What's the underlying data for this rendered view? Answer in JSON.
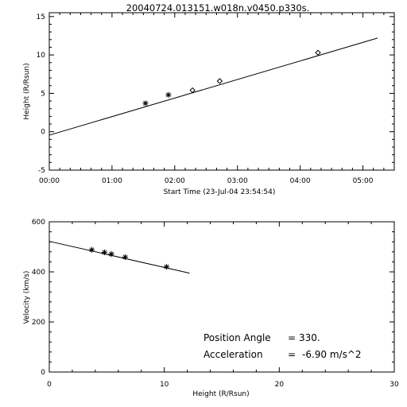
{
  "chart_data": [
    {
      "type": "line",
      "title": "20040724.013151.w018n.v0450.p330s.",
      "xlabel": "Start Time (23-Jul-04 23:54:54)",
      "ylabel": "Height (R/Rsun)",
      "x_tick_labels": [
        "00:00",
        "01:00",
        "02:00",
        "03:00",
        "04:00",
        "05:00"
      ],
      "x_tick_minutes": [
        0,
        60,
        120,
        180,
        240,
        300
      ],
      "xlim_minutes": [
        0,
        330
      ],
      "y_ticks": [
        -5,
        0,
        5,
        10,
        15
      ],
      "ylim": [
        -5,
        15.5
      ],
      "grid": false,
      "series": [
        {
          "style": "line",
          "x_minutes": [
            0,
            314
          ],
          "y": [
            -0.45,
            12.2
          ]
        },
        {
          "style": "asterisk",
          "x_minutes": [
            92,
            114
          ],
          "y": [
            3.7,
            4.8
          ]
        },
        {
          "style": "diamond",
          "x_minutes": [
            137,
            163,
            257
          ],
          "y": [
            5.4,
            6.6,
            10.3
          ]
        }
      ]
    },
    {
      "type": "line",
      "title": "",
      "xlabel": "Height (R/Rsun)",
      "ylabel": "Velocity (km/s)",
      "x_ticks": [
        0,
        10,
        20,
        30
      ],
      "xlim": [
        0,
        30
      ],
      "y_ticks": [
        0,
        200,
        400,
        600
      ],
      "ylim": [
        0,
        600
      ],
      "grid": false,
      "series": [
        {
          "style": "line",
          "x": [
            0,
            12.2
          ],
          "y": [
            522,
            395
          ]
        },
        {
          "style": "asterisk",
          "x": [
            3.7,
            4.8,
            5.4,
            6.6,
            10.2
          ],
          "y": [
            488,
            478,
            471,
            459,
            420
          ]
        }
      ],
      "annotations": [
        {
          "label": "Position Angle",
          "value": "330."
        },
        {
          "label": "Acceleration",
          "value": "-6.90 m/s^2"
        }
      ]
    }
  ]
}
